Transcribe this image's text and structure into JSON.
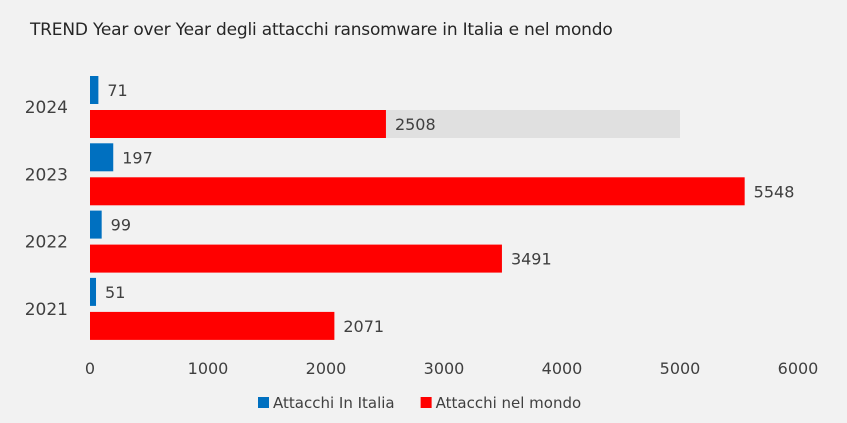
{
  "chart_data": {
    "type": "bar",
    "orientation": "horizontal",
    "title": "TREND Year over Year degli attacchi ransomware in Italia e nel mondo",
    "categories": [
      "2024",
      "2023",
      "2022",
      "2021"
    ],
    "series": [
      {
        "name": "Attacchi In Italia",
        "values": [
          71,
          197,
          99,
          51
        ],
        "color": "#0070c0"
      },
      {
        "name": "Attacchi nel mondo",
        "values": [
          2508,
          5548,
          3491,
          2071
        ],
        "color": "#ff0000"
      }
    ],
    "xlim": [
      0,
      6000
    ],
    "xticks": [
      0,
      1000,
      2000,
      3000,
      4000,
      5000,
      6000
    ],
    "highlight": {
      "category": "2024",
      "upto": 5000,
      "color": "#e0e0e0"
    },
    "grid": false,
    "legend_position": "bottom",
    "background_color": "#f2f2f2",
    "text_color": "#404040"
  }
}
